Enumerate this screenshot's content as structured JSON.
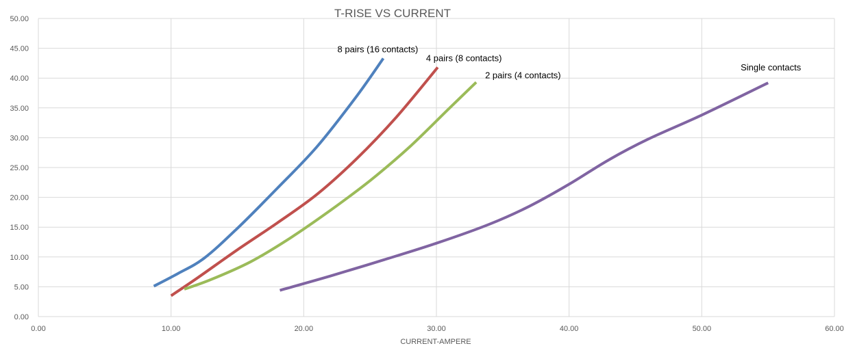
{
  "chart_data": {
    "type": "line",
    "title": "T-RISE VS CURRENT",
    "xlabel": "CURRENT-AMPERE",
    "ylabel": "",
    "xlim": [
      0,
      60
    ],
    "ylim": [
      0,
      50
    ],
    "xticks": [
      "0.00",
      "10.00",
      "20.00",
      "30.00",
      "40.00",
      "50.00",
      "60.00"
    ],
    "yticks": [
      "0.00",
      "5.00",
      "10.00",
      "15.00",
      "20.00",
      "25.00",
      "30.00",
      "35.00",
      "40.00",
      "45.00",
      "50.00"
    ],
    "grid": true,
    "legend": "inline labels at line ends",
    "series": [
      {
        "name": "8 pairs (16 contacts)",
        "color": "#4f81bd",
        "points": [
          [
            8.7,
            5.1
          ],
          [
            10.5,
            7.2
          ],
          [
            12.5,
            9.8
          ],
          [
            15,
            14.8
          ],
          [
            18,
            21.5
          ],
          [
            21,
            28.5
          ],
          [
            24,
            37.0
          ],
          [
            26.0,
            43.3
          ]
        ]
      },
      {
        "name": "4 pairs (8 contacts)",
        "color": "#c0504d",
        "points": [
          [
            10.0,
            3.5
          ],
          [
            12,
            6.5
          ],
          [
            15,
            11.2
          ],
          [
            18,
            15.7
          ],
          [
            21,
            20.5
          ],
          [
            24,
            26.5
          ],
          [
            27,
            33.5
          ],
          [
            30.1,
            41.8
          ]
        ]
      },
      {
        "name": "2 pairs (4 contacts)",
        "color": "#9bbb59",
        "points": [
          [
            11.0,
            4.6
          ],
          [
            13,
            6.2
          ],
          [
            16,
            9.2
          ],
          [
            19,
            13.2
          ],
          [
            22,
            17.8
          ],
          [
            25,
            22.8
          ],
          [
            28,
            28.5
          ],
          [
            31,
            35.0
          ],
          [
            33.0,
            39.3
          ]
        ]
      },
      {
        "name": "Single contacts",
        "color": "#8064a2",
        "points": [
          [
            18.2,
            4.4
          ],
          [
            22,
            6.8
          ],
          [
            26,
            9.5
          ],
          [
            30,
            12.3
          ],
          [
            34,
            15.5
          ],
          [
            37,
            18.5
          ],
          [
            40,
            22.2
          ],
          [
            43,
            26.3
          ],
          [
            46,
            29.8
          ],
          [
            50,
            33.8
          ],
          [
            55.0,
            39.2
          ]
        ]
      }
    ]
  }
}
